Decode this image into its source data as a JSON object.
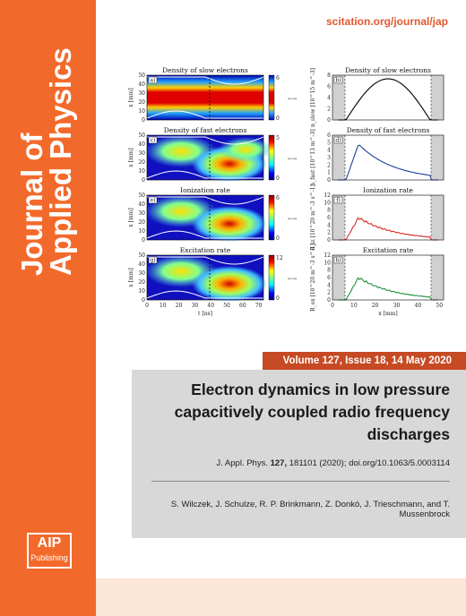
{
  "journal": {
    "name_line1": "Journal of",
    "name_line2": "Applied Physics",
    "url": "scitation.org/journal/jap",
    "publisher_logo_top": "AIP",
    "publisher_logo_bottom": "Publishing"
  },
  "issue": {
    "volume_line": "Volume 127, Issue 18, 14 May 2020"
  },
  "article": {
    "title": "Electron dynamics in low pressure capacitively coupled radio frequency discharges",
    "citation_prefix": "J. Appl. Phys. ",
    "citation_volume": "127,",
    "citation_rest": " 181101 (2020); doi.org/10.1063/5.0003114",
    "authors": "S. Wilczek, J. Schulze, R. P. Brinkmann, Z. Donkó, J. Trieschmann, and T. Mussenbrock"
  },
  "figure": {
    "panels": [
      {
        "title": "Density of slow electrons",
        "label": "a)"
      },
      {
        "title": "Density of slow electrons",
        "label": "b)"
      },
      {
        "title": "Density of fast electrons",
        "label": "c)"
      },
      {
        "title": "Density of fast electrons",
        "label": "d)"
      },
      {
        "title": "Ionization rate",
        "label": "e)"
      },
      {
        "title": "Ionization rate",
        "label": "f)"
      },
      {
        "title": "Excitation rate",
        "label": "g)"
      },
      {
        "title": "Excitation rate",
        "label": "h)"
      }
    ],
    "left_xlabel": "t [ns]",
    "right_xlabel": "x [mm]",
    "left_ylabel": "x [mm]",
    "right_ylabels": [
      "n_slow [10^15 m^-3]",
      "n_fast [10^13 m^-3]",
      "R_iz [10^20 m^-3 s^-1]",
      "R_ex [10^20 m^-3 s^-1]"
    ],
    "colorbar_max": [
      "6",
      "5",
      "6",
      "12"
    ],
    "left_xticks": [
      "0",
      "10",
      "20",
      "30",
      "40",
      "50",
      "60",
      "70"
    ],
    "right_xticks": [
      "0",
      "10",
      "20",
      "30",
      "40",
      "50"
    ],
    "left_yticks": [
      "0",
      "10",
      "20",
      "30",
      "40",
      "50"
    ],
    "right_yticks_b": [
      "0",
      "2",
      "4",
      "6",
      "8"
    ],
    "right_yticks_d": [
      "0",
      "1",
      "2",
      "3",
      "4",
      "5",
      "6"
    ],
    "right_yticks_f": [
      "0",
      "2",
      "4",
      "6",
      "8",
      "10",
      "12"
    ],
    "right_yticks_h": [
      "0",
      "2",
      "4",
      "6",
      "8",
      "10",
      "12"
    ]
  }
}
